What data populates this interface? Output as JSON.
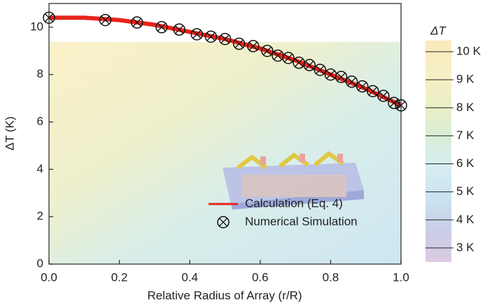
{
  "chart_data": {
    "type": "line",
    "xlabel": "Relative Radius of Array (r/R)",
    "ylabel": "ΔT (K)",
    "xlim": [
      0,
      1
    ],
    "xticks": [
      {
        "value": 0,
        "label": "0.0"
      },
      0.2,
      0.4,
      0.6,
      0.8,
      {
        "value": 1,
        "label": "1.0"
      }
    ],
    "ylim": [
      0,
      11
    ],
    "yticks": [
      0,
      2,
      4,
      6,
      8,
      10
    ],
    "series": [
      {
        "name": "Calculation (Eq. 4)",
        "type": "line",
        "color": "#e8221c",
        "x": [
          0,
          0.1,
          0.2,
          0.3,
          0.4,
          0.5,
          0.6,
          0.7,
          0.8,
          0.9,
          1
        ],
        "values": [
          10.4,
          10.4,
          10.3,
          10.1,
          9.8,
          9.5,
          9.1,
          8.6,
          8.0,
          7.4,
          6.7
        ]
      },
      {
        "name": "Numerical Simulation",
        "type": "scatter",
        "color": "#111111",
        "x": [
          0,
          0.16,
          0.25,
          0.32,
          0.37,
          0.42,
          0.46,
          0.5,
          0.54,
          0.58,
          0.62,
          0.65,
          0.68,
          0.71,
          0.74,
          0.77,
          0.8,
          0.83,
          0.86,
          0.89,
          0.92,
          0.95,
          0.98,
          1
        ],
        "values": [
          10.4,
          10.3,
          10.2,
          10.0,
          9.9,
          9.7,
          9.6,
          9.5,
          9.3,
          9.2,
          9.0,
          8.8,
          8.7,
          8.5,
          8.4,
          8.2,
          8.0,
          7.9,
          7.7,
          7.5,
          7.3,
          7.1,
          6.8,
          6.7
        ]
      }
    ],
    "colorbar": {
      "title": "ΔT",
      "lim": [
        2.5,
        10.4
      ],
      "colors": [
        "#dccbe3",
        "#c9cde6",
        "#c9e3f0",
        "#d6edf1",
        "#d9edd6",
        "#ecefc5",
        "#f7efc5",
        "#faeabb"
      ],
      "ticks": [
        {
          "value": 10,
          "label": "10 K"
        },
        {
          "value": 9,
          "label": "9 K"
        },
        {
          "value": 8,
          "label": "8 K"
        },
        {
          "value": 7,
          "label": "7 K"
        },
        {
          "value": 6,
          "label": "6 K"
        },
        {
          "value": 5,
          "label": "5 K"
        },
        {
          "value": 4,
          "label": "4 K"
        },
        {
          "value": 3,
          "label": "3 K"
        }
      ]
    }
  }
}
